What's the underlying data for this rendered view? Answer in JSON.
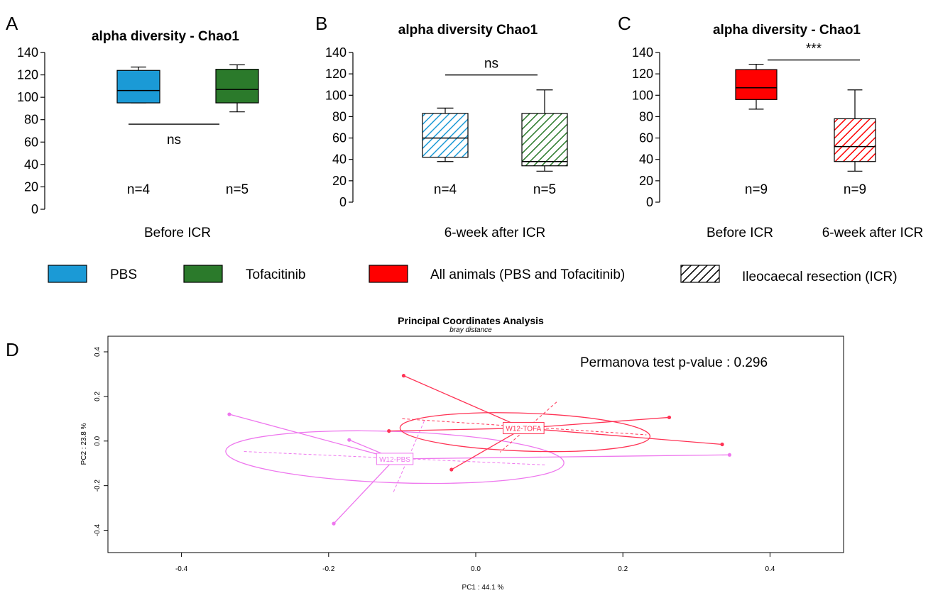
{
  "panel_letters": [
    "A",
    "B",
    "C",
    "D"
  ],
  "legend": [
    {
      "label": "PBS",
      "color": "#1b9ad6",
      "pattern": "solid"
    },
    {
      "label": "Tofacitinib",
      "color": "#2b7a2b",
      "pattern": "solid"
    },
    {
      "label": "All animals (PBS and Tofacitinib)",
      "color": "#ff0000",
      "pattern": "solid"
    },
    {
      "label": "Ileocaecal resection (ICR)",
      "color": "#000000",
      "pattern": "hatch"
    }
  ],
  "chart_data": [
    {
      "type": "box",
      "panel": "A",
      "title": "alpha diversity - Chao1",
      "ylim": [
        0,
        140
      ],
      "yticks": [
        0,
        20,
        40,
        60,
        80,
        100,
        120,
        140
      ],
      "xlabel": "Before ICR",
      "boxes": [
        {
          "color": "#1b9ad6",
          "pattern": "solid",
          "min": 95,
          "q1": 95,
          "median": 106,
          "q3": 124,
          "max": 127,
          "n_label": "n=4"
        },
        {
          "color": "#2b7a2b",
          "pattern": "solid",
          "min": 87,
          "q1": 95,
          "median": 107,
          "q3": 125,
          "max": 129,
          "n_label": "n=5"
        }
      ],
      "significance": {
        "label": "ns",
        "y": 76,
        "label_position": "below"
      }
    },
    {
      "type": "box",
      "panel": "B",
      "title": "alpha diversity Chao1",
      "ylim": [
        0,
        140
      ],
      "yticks": [
        0,
        20,
        40,
        60,
        80,
        100,
        120,
        140
      ],
      "xlabel": "6-week after ICR",
      "boxes": [
        {
          "color": "#1b9ad6",
          "pattern": "hatch",
          "min": 38,
          "q1": 42,
          "median": 60,
          "q3": 83,
          "max": 88,
          "n_label": "n=4"
        },
        {
          "color": "#2b7a2b",
          "pattern": "hatch",
          "min": 29,
          "q1": 34,
          "median": 38,
          "q3": 83,
          "max": 105,
          "n_label": "n=5"
        }
      ],
      "significance": {
        "label": "ns",
        "y": 119,
        "label_position": "above"
      }
    },
    {
      "type": "box",
      "panel": "C",
      "title": "alpha diversity - Chao1",
      "ylim": [
        0,
        140
      ],
      "yticks": [
        0,
        20,
        40,
        60,
        80,
        100,
        120,
        140
      ],
      "xlabels": [
        "Before ICR",
        "6-week after ICR"
      ],
      "boxes": [
        {
          "color": "#ff0000",
          "pattern": "solid",
          "min": 87,
          "q1": 96,
          "median": 107,
          "q3": 124,
          "max": 129,
          "n_label": "n=9"
        },
        {
          "color": "#ff0000",
          "pattern": "hatch",
          "min": 29,
          "q1": 38,
          "median": 52,
          "q3": 78,
          "max": 105,
          "n_label": "n=9"
        }
      ],
      "significance": {
        "label": "***",
        "y": 133,
        "label_position": "above"
      }
    },
    {
      "type": "scatter",
      "panel": "D",
      "title": "Principal Coordinates Analysis",
      "subtitle": "bray distance",
      "xlabel": "PC1 : 44.1 %",
      "ylabel": "PC2 : 23.8 %",
      "xlim": [
        -0.5,
        0.5
      ],
      "ylim": [
        -0.5,
        0.47
      ],
      "xticks": [
        -0.4,
        -0.2,
        0.0,
        0.2,
        0.4
      ],
      "yticks": [
        -0.4,
        -0.2,
        0.0,
        0.2,
        0.4
      ],
      "annotation": "Permanova test p-value : 0.296",
      "groups": [
        {
          "name": "W12-PBS",
          "color": "#ee77ee",
          "centroid": [
            -0.11,
            -0.08
          ],
          "points": [
            [
              -0.335,
              0.12
            ],
            [
              -0.172,
              0.005
            ],
            [
              -0.193,
              -0.37
            ],
            [
              0.345,
              -0.062
            ]
          ],
          "ellipse": {
            "cx": -0.11,
            "cy": -0.072,
            "rx": 0.23,
            "ry": 0.115,
            "angle_deg": 2
          },
          "axes": [
            [
              [
                -0.315,
                -0.047
              ],
              [
                0.095,
                -0.107
              ]
            ],
            [
              [
                -0.07,
                0.09
              ],
              [
                -0.112,
                -0.23
              ]
            ]
          ]
        },
        {
          "name": "W12-TOFA",
          "color": "#ff3355",
          "centroid": [
            0.065,
            0.058
          ],
          "points": [
            [
              -0.098,
              0.293
            ],
            [
              -0.118,
              0.045
            ],
            [
              -0.033,
              -0.128
            ],
            [
              0.263,
              0.106
            ],
            [
              0.335,
              -0.015
            ]
          ],
          "ellipse": {
            "cx": 0.067,
            "cy": 0.04,
            "rx": 0.17,
            "ry": 0.085,
            "angle_deg": 2
          },
          "axes": [
            [
              [
                -0.1,
                0.1
              ],
              [
                0.232,
                0.028
              ]
            ],
            [
              [
                0.11,
                0.175
              ],
              [
                0.033,
                -0.05
              ]
            ]
          ]
        }
      ]
    }
  ]
}
